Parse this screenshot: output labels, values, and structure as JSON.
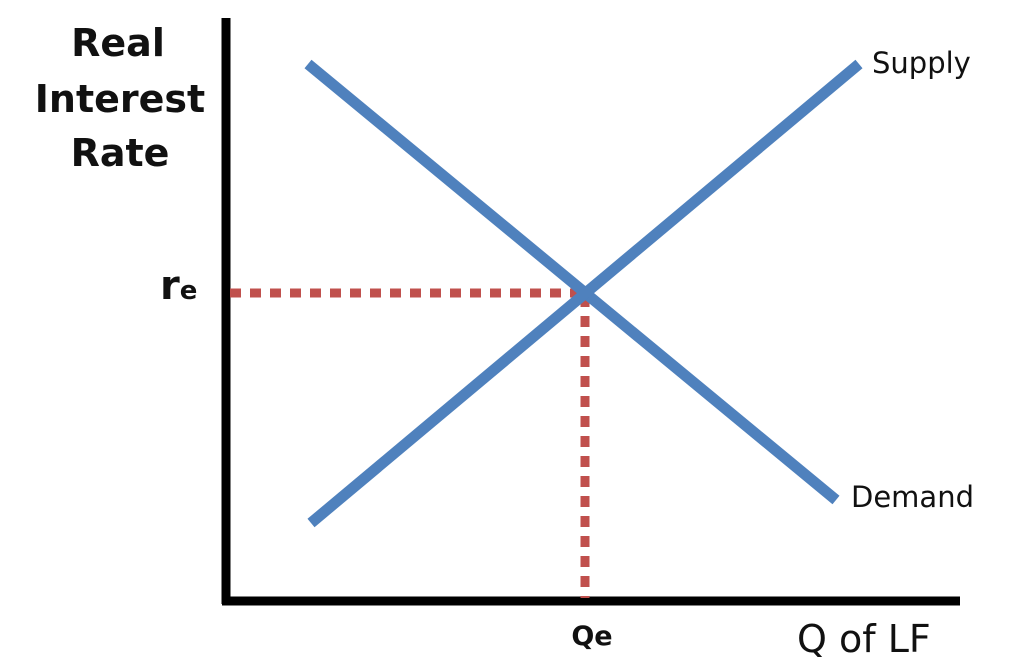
{
  "diagram": {
    "y_axis_label_lines": [
      "Real",
      "Interest",
      "Rate"
    ],
    "x_axis_label": "Q of LF",
    "equilibrium_rate_symbol": "r",
    "equilibrium_rate_subscript": "e",
    "equilibrium_quantity_label": "Qe",
    "supply_label": "Supply",
    "demand_label": "Demand",
    "colors": {
      "axes": "#000000",
      "curves": "#4f81bd",
      "guides": "#c0504d"
    }
  }
}
